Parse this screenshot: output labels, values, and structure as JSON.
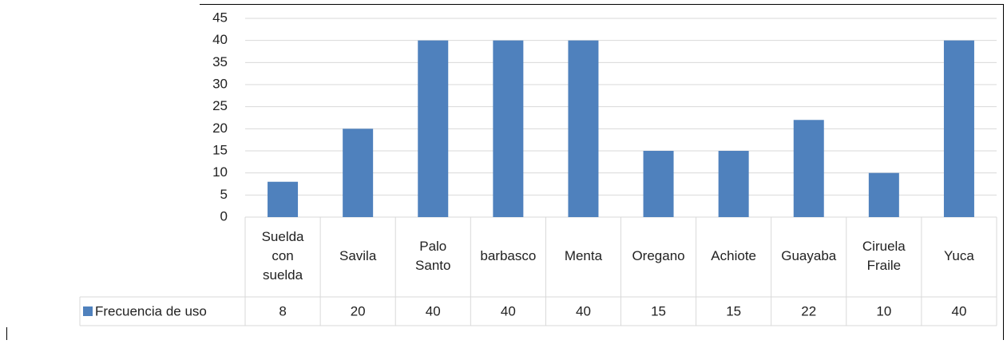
{
  "chart_data": {
    "type": "bar",
    "categories": [
      "Suelda con suelda",
      "Savila",
      "Palo Santo",
      "barbasco",
      "Menta",
      "Oregano",
      "Achiote",
      "Guayaba",
      "Ciruela Fraile",
      "Yuca"
    ],
    "series": [
      {
        "name": "Frecuencia de uso",
        "color": "#4f81bd",
        "values": [
          8,
          20,
          40,
          40,
          40,
          15,
          15,
          22,
          10,
          40
        ]
      }
    ],
    "ylim": [
      0,
      45
    ],
    "yticks": [
      0,
      5,
      10,
      15,
      20,
      25,
      30,
      35,
      40,
      45
    ],
    "grid": true
  }
}
